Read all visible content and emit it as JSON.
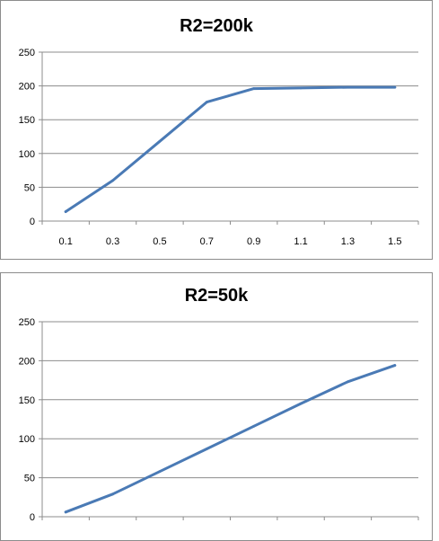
{
  "charts": [
    {
      "chart_data": {
        "type": "line",
        "title": "R2=200k",
        "x": [
          0.1,
          0.3,
          0.5,
          0.7,
          0.9,
          1.1,
          1.3,
          1.5
        ],
        "x_tick_labels": [
          "0.1",
          "0.3",
          "0.5",
          "0.7",
          "0.9",
          "1.1",
          "1.3",
          "1.5"
        ],
        "series": [
          {
            "values": [
              14,
              60,
              118,
              176,
              196,
              197,
              198,
              198
            ]
          }
        ],
        "ylim": [
          0,
          250
        ],
        "y_ticks": [
          0,
          50,
          100,
          150,
          200,
          250
        ],
        "x_tick_labels_shown": true,
        "grid": "horizontal",
        "legend": "none",
        "line_color": "#4a7ab5"
      }
    },
    {
      "chart_data": {
        "type": "line",
        "title": "R2=50k",
        "x": [
          0.1,
          0.3,
          0.5,
          0.7,
          0.9,
          1.1,
          1.3,
          1.5
        ],
        "series": [
          {
            "values": [
              6,
              29,
              58,
              87,
              116,
              145,
              173,
              194
            ]
          }
        ],
        "ylim": [
          0,
          250
        ],
        "y_ticks": [
          0,
          50,
          100,
          150,
          200,
          250
        ],
        "x_tick_labels_shown": false,
        "grid": "horizontal",
        "legend": "none",
        "line_color": "#4a7ab5"
      }
    }
  ]
}
